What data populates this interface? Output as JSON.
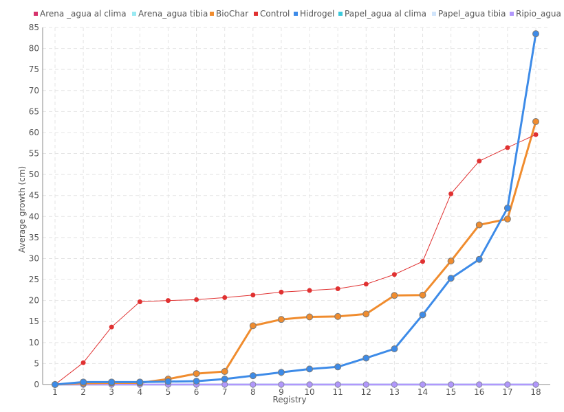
{
  "chart_data": {
    "type": "line",
    "xlabel": "Registry",
    "ylabel": "Average growth (cm)",
    "ylim": [
      0,
      85
    ],
    "ytick_step": 5,
    "grid": true,
    "legend_position": "top",
    "x": [
      "1",
      "2",
      "3",
      "4",
      "5",
      "6",
      "7",
      "8",
      "9",
      "10",
      "11",
      "12",
      "13",
      "14",
      "15",
      "16",
      "17",
      "18"
    ],
    "series": [
      {
        "name": "Arena _agua al clima",
        "color": "#d6336c",
        "values": [
          0,
          0,
          0,
          0,
          0,
          0,
          0,
          0,
          0,
          0,
          0,
          0,
          0,
          0,
          0,
          0,
          0,
          0
        ]
      },
      {
        "name": "Arena_agua tibia",
        "color": "#99e9f2",
        "values": [
          0,
          0,
          0,
          0,
          0,
          0,
          0,
          0,
          0,
          0,
          0,
          0,
          0,
          0,
          0,
          0,
          0,
          0
        ]
      },
      {
        "name": "BioChar",
        "color": "#f08c2e",
        "values": [
          0,
          0.3,
          0.4,
          0.4,
          1.3,
          2.6,
          3.1,
          14.0,
          15.5,
          16.1,
          16.2,
          16.8,
          21.2,
          21.3,
          29.4,
          38.0,
          39.4,
          62.6
        ]
      },
      {
        "name": "Control",
        "color": "#e03131",
        "values": [
          0,
          5.2,
          13.7,
          19.7,
          20.0,
          20.2,
          20.7,
          21.3,
          22.0,
          22.4,
          22.8,
          23.9,
          26.2,
          29.3,
          45.4,
          53.2,
          56.4,
          59.5
        ]
      },
      {
        "name": "Hidrogel",
        "color": "#3d8be8",
        "values": [
          0,
          0.6,
          0.6,
          0.6,
          0.7,
          0.8,
          1.3,
          2.1,
          2.9,
          3.7,
          4.2,
          6.3,
          8.5,
          16.6,
          25.3,
          29.8,
          42.0,
          83.5
        ]
      },
      {
        "name": "Papel_agua al clima",
        "color": "#3bc9db",
        "values": [
          0,
          0,
          0,
          0,
          0,
          0,
          0,
          0,
          0,
          0,
          0,
          0,
          0,
          0,
          0,
          0,
          0,
          0
        ]
      },
      {
        "name": "Papel_agua tibia",
        "color": "#d0e4fb",
        "values": [
          0,
          0,
          0,
          0,
          0,
          0,
          0,
          0,
          0,
          0,
          0,
          0,
          0,
          0,
          0,
          0,
          0,
          0
        ]
      },
      {
        "name": "Ripio_agua a",
        "color": "#b197fc",
        "values": [
          0,
          0,
          0,
          0,
          0,
          0,
          0,
          0,
          0,
          0,
          0,
          0,
          0,
          0,
          0,
          0,
          0,
          0
        ]
      }
    ]
  }
}
